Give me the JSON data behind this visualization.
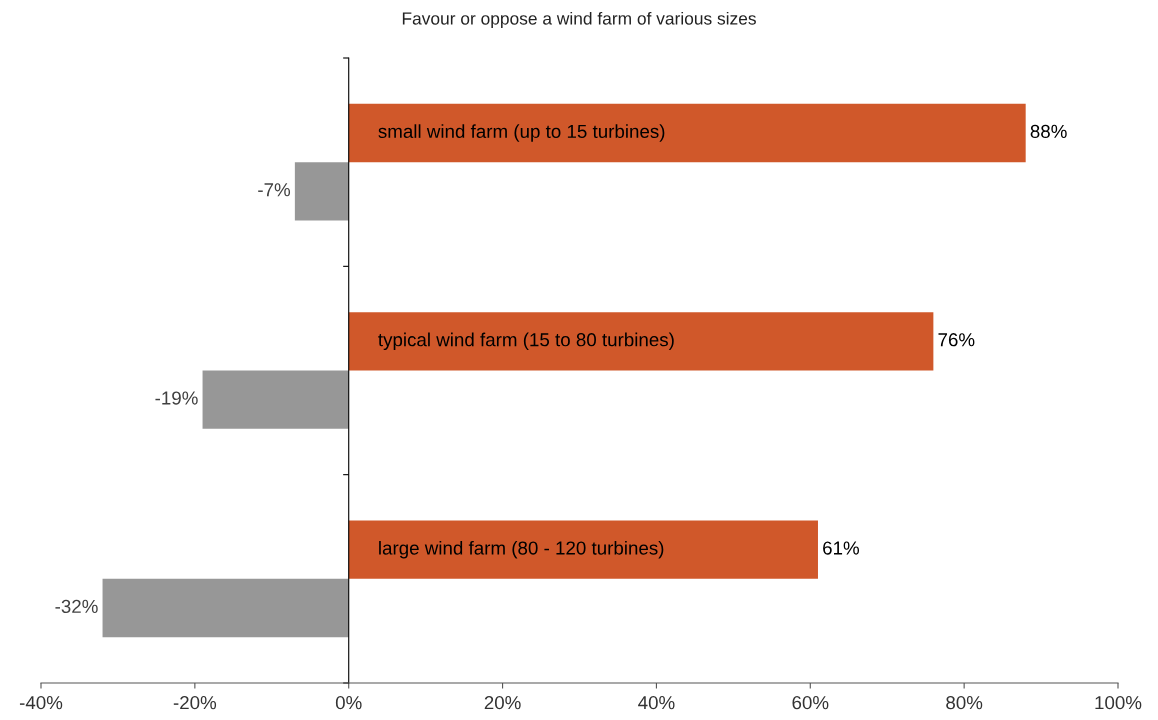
{
  "chart_data": {
    "type": "bar",
    "orientation": "horizontal",
    "title": "Favour or oppose a wind farm of various sizes",
    "categories": [
      "small wind farm (up to 15 turbines)",
      "typical wind farm (15 to 80 turbines)",
      "large wind farm (80 - 120 turbines)"
    ],
    "series": [
      {
        "color": "#d0582a",
        "values": [
          88,
          76,
          61
        ],
        "value_labels": [
          "88%",
          "76%",
          "61%"
        ]
      },
      {
        "color": "#979797",
        "values": [
          -7,
          -19,
          -32
        ],
        "value_labels": [
          "-7%",
          "-19%",
          "-32%"
        ]
      }
    ],
    "xlim": [
      -40,
      100
    ],
    "xticks": [
      {
        "value": -40,
        "label": "-40%"
      },
      {
        "value": -20,
        "label": "-20%"
      },
      {
        "value": 0,
        "label": "0%"
      },
      {
        "value": 20,
        "label": "20%"
      },
      {
        "value": 40,
        "label": "40%"
      },
      {
        "value": 60,
        "label": "60%"
      },
      {
        "value": 80,
        "label": "80%"
      },
      {
        "value": 100,
        "label": "100%"
      }
    ],
    "grid": false,
    "legend": false
  }
}
